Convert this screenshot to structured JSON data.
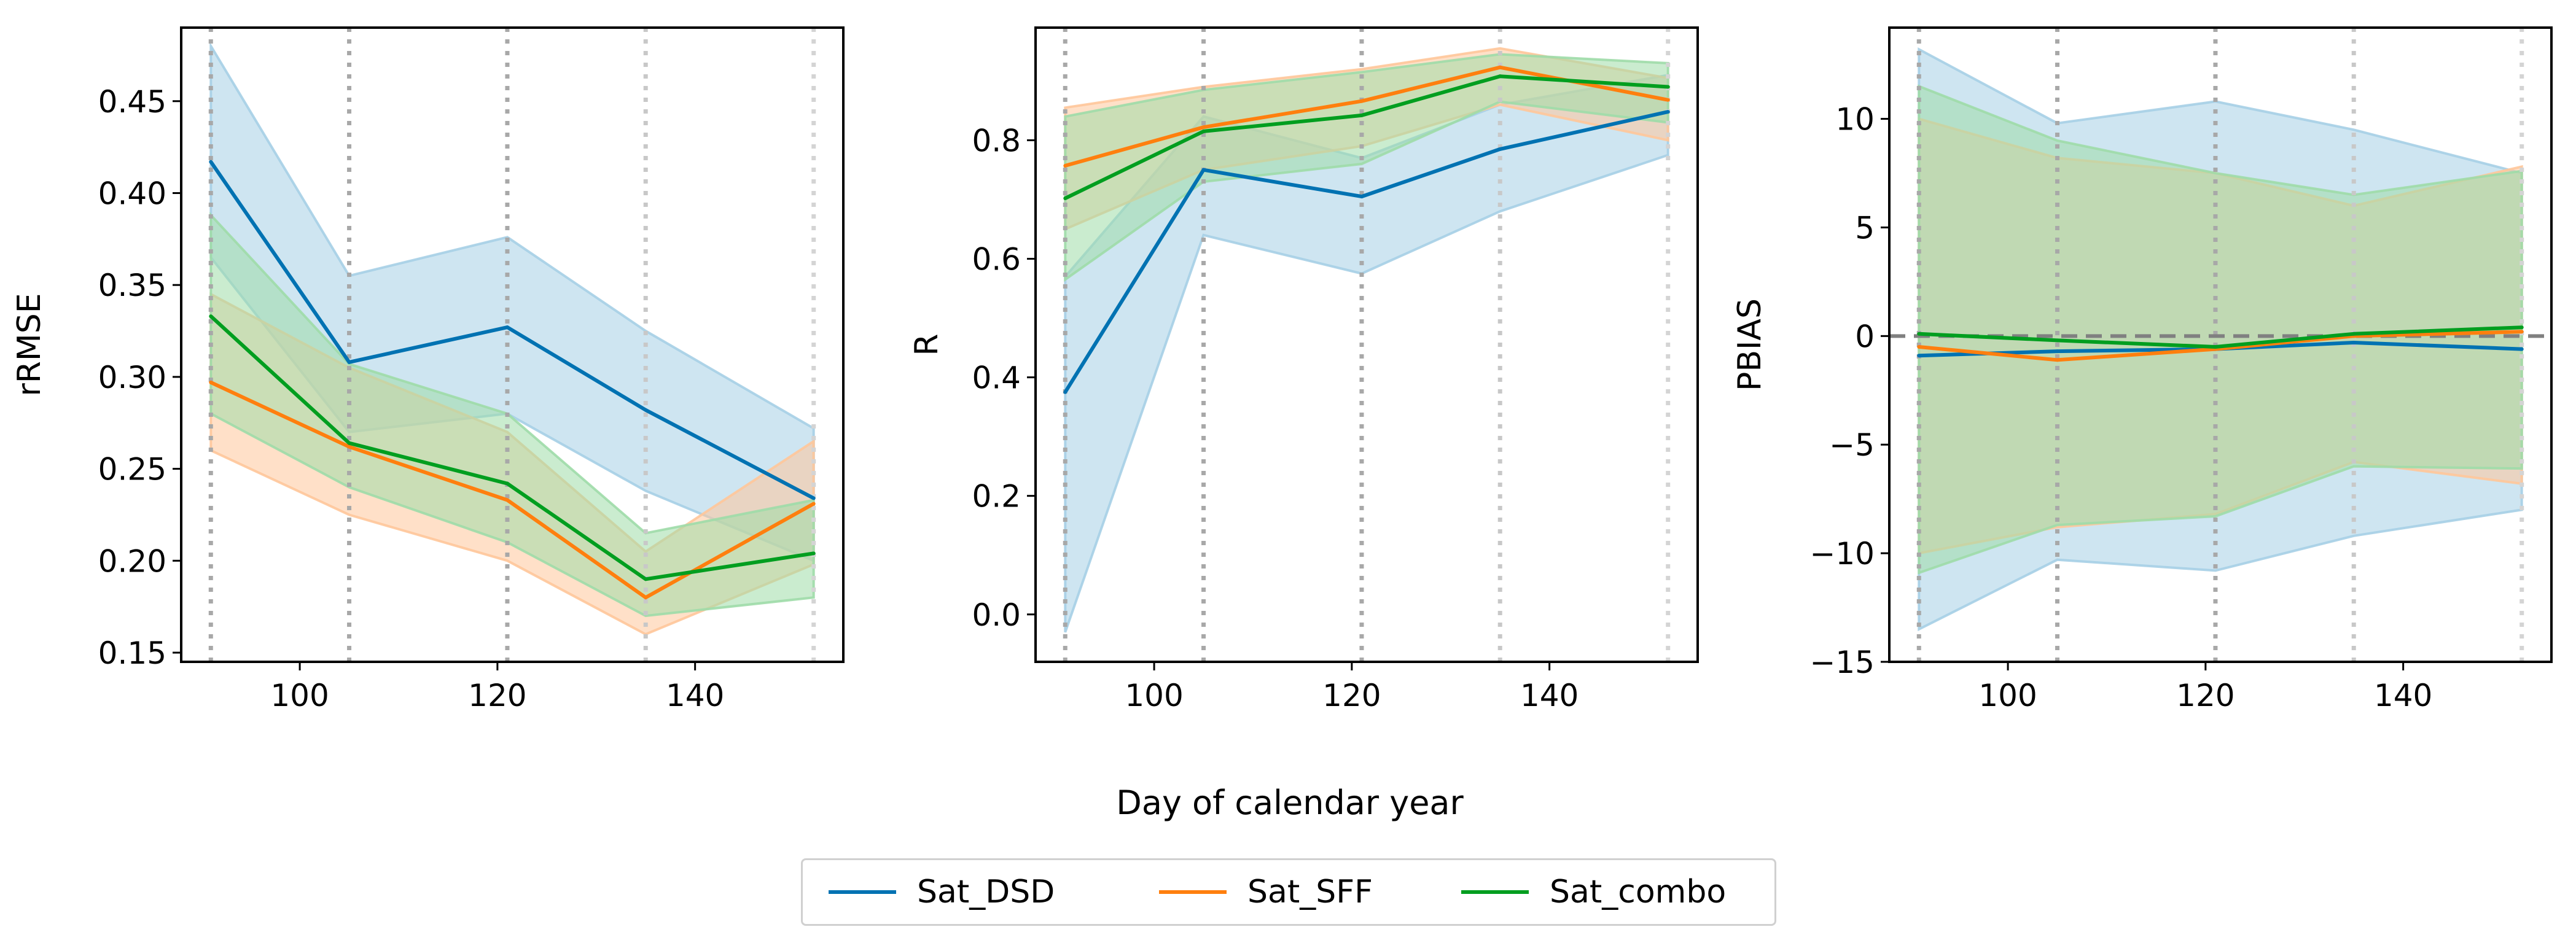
{
  "figure": {
    "xlabel": "Day of calendar year",
    "legend": [
      {
        "name": "Sat_DSD",
        "color": "#0072b2"
      },
      {
        "name": "Sat_SFF",
        "color": "#ff7f0e"
      },
      {
        "name": "Sat_combo",
        "color": "#009e1f"
      }
    ]
  },
  "chart_data": [
    {
      "type": "line",
      "title": "",
      "xlabel": "",
      "ylabel": "rRMSE",
      "xlim": [
        88,
        155
      ],
      "ylim": [
        0.145,
        0.49
      ],
      "xticks": [
        100,
        120,
        140
      ],
      "xtick_labels": [
        "100",
        "120",
        "140"
      ],
      "yticks": [
        0.15,
        0.2,
        0.25,
        0.3,
        0.35,
        0.4,
        0.45
      ],
      "ytick_labels": [
        "0.15",
        "0.20",
        "0.25",
        "0.30",
        "0.35",
        "0.40",
        "0.45"
      ],
      "vlines": [
        91,
        105,
        121,
        135,
        152
      ],
      "hline": null,
      "x": [
        91,
        105,
        121,
        135,
        152
      ],
      "series": [
        {
          "name": "Sat_DSD",
          "color": "#0072b2",
          "fill": "#a6cfe6",
          "values": [
            0.417,
            0.308,
            0.327,
            0.282,
            0.234
          ],
          "lower": [
            0.365,
            0.27,
            0.28,
            0.238,
            0.2
          ],
          "upper": [
            0.48,
            0.355,
            0.376,
            0.325,
            0.272
          ]
        },
        {
          "name": "Sat_SFF",
          "color": "#ff7f0e",
          "fill": "#ffc79a",
          "values": [
            0.297,
            0.262,
            0.233,
            0.18,
            0.231
          ],
          "lower": [
            0.26,
            0.225,
            0.2,
            0.16,
            0.198
          ],
          "upper": [
            0.345,
            0.305,
            0.27,
            0.205,
            0.265
          ]
        },
        {
          "name": "Sat_combo",
          "color": "#009e1f",
          "fill": "#9fdca8",
          "values": [
            0.333,
            0.264,
            0.242,
            0.19,
            0.204
          ],
          "lower": [
            0.28,
            0.24,
            0.21,
            0.17,
            0.18
          ],
          "upper": [
            0.388,
            0.307,
            0.28,
            0.215,
            0.233
          ]
        }
      ]
    },
    {
      "type": "line",
      "title": "",
      "xlabel": "",
      "ylabel": "R",
      "xlim": [
        88,
        155
      ],
      "ylim": [
        -0.08,
        0.99
      ],
      "xticks": [
        100,
        120,
        140
      ],
      "xtick_labels": [
        "100",
        "120",
        "140"
      ],
      "yticks": [
        0,
        0.2,
        0.4,
        0.6,
        0.8
      ],
      "ytick_labels": [
        "0.0",
        "0.2",
        "0.4",
        "0.6",
        "0.8"
      ],
      "vlines": [
        91,
        105,
        121,
        135,
        152
      ],
      "hline": null,
      "x": [
        91,
        105,
        121,
        135,
        152
      ],
      "series": [
        {
          "name": "Sat_DSD",
          "color": "#0072b2",
          "fill": "#a6cfe6",
          "values": [
            0.375,
            0.75,
            0.705,
            0.785,
            0.848
          ],
          "lower": [
            -0.03,
            0.64,
            0.575,
            0.68,
            0.775
          ],
          "upper": [
            0.57,
            0.84,
            0.77,
            0.86,
            0.91
          ]
        },
        {
          "name": "Sat_SFF",
          "color": "#ff7f0e",
          "fill": "#ffc79a",
          "values": [
            0.757,
            0.822,
            0.866,
            0.923,
            0.868
          ],
          "lower": [
            0.65,
            0.75,
            0.79,
            0.86,
            0.8
          ],
          "upper": [
            0.855,
            0.89,
            0.92,
            0.955,
            0.905
          ]
        },
        {
          "name": "Sat_combo",
          "color": "#009e1f",
          "fill": "#9fdca8",
          "values": [
            0.702,
            0.815,
            0.842,
            0.908,
            0.89
          ],
          "lower": [
            0.565,
            0.73,
            0.76,
            0.865,
            0.83
          ],
          "upper": [
            0.84,
            0.885,
            0.915,
            0.945,
            0.93
          ]
        }
      ]
    },
    {
      "type": "line",
      "title": "",
      "xlabel": "",
      "ylabel": "PBIAS",
      "xlim": [
        88,
        155
      ],
      "ylim": [
        -15,
        14.2
      ],
      "xticks": [
        100,
        120,
        140
      ],
      "xtick_labels": [
        "100",
        "120",
        "140"
      ],
      "yticks": [
        -15,
        -10,
        -5,
        0,
        5,
        10
      ],
      "ytick_labels": [
        "−15",
        "−10",
        "−5",
        "0",
        "5",
        "10"
      ],
      "vlines": [
        91,
        105,
        121,
        135,
        152
      ],
      "hline": 0,
      "x": [
        91,
        105,
        121,
        135,
        152
      ],
      "series": [
        {
          "name": "Sat_DSD",
          "color": "#0072b2",
          "fill": "#a6cfe6",
          "values": [
            -0.9,
            -0.7,
            -0.6,
            -0.3,
            -0.6
          ],
          "lower": [
            -13.5,
            -10.3,
            -10.8,
            -9.2,
            -8.0
          ],
          "upper": [
            13.2,
            9.8,
            10.8,
            9.5,
            7.5
          ]
        },
        {
          "name": "Sat_SFF",
          "color": "#ff7f0e",
          "fill": "#ffc79a",
          "values": [
            -0.5,
            -1.1,
            -0.6,
            0.0,
            0.2
          ],
          "lower": [
            -10.0,
            -8.8,
            -8.2,
            -5.8,
            -6.8
          ],
          "upper": [
            10.0,
            8.2,
            7.5,
            6.0,
            7.8
          ]
        },
        {
          "name": "Sat_combo",
          "color": "#009e1f",
          "fill": "#9fdca8",
          "values": [
            0.1,
            -0.2,
            -0.5,
            0.1,
            0.4
          ],
          "lower": [
            -10.9,
            -8.7,
            -8.3,
            -6.0,
            -6.1
          ],
          "upper": [
            11.5,
            9.0,
            7.5,
            6.5,
            7.6
          ]
        }
      ]
    }
  ]
}
